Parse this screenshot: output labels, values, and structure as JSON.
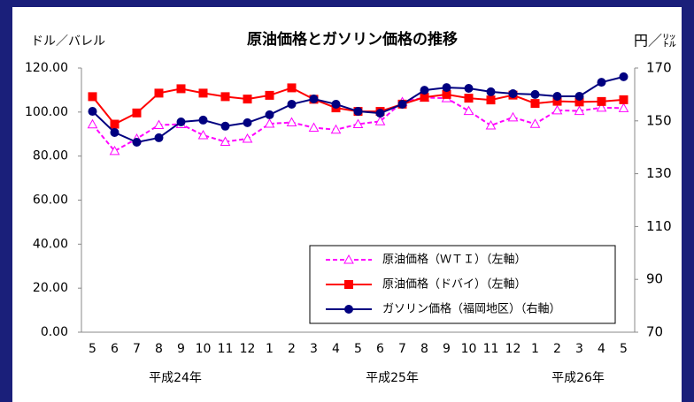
{
  "chart_data": {
    "type": "line",
    "title": "原油価格とガソリン価格の推移",
    "y_label": "ドル／バレル",
    "y2_label": "円／㍑",
    "categories": [
      "5",
      "6",
      "7",
      "8",
      "9",
      "10",
      "11",
      "12",
      "1",
      "2",
      "3",
      "4",
      "5",
      "6",
      "7",
      "8",
      "9",
      "10",
      "11",
      "12",
      "1",
      "2",
      "3",
      "4",
      "5"
    ],
    "year_labels": [
      "平成24年",
      "平成25年",
      "平成26年"
    ],
    "ylim": [
      0,
      120
    ],
    "yticks": [
      {
        "value": 0,
        "label": "0.00"
      },
      {
        "value": 20,
        "label": "20.00"
      },
      {
        "value": 40,
        "label": "40.00"
      },
      {
        "value": 60,
        "label": "60.00"
      },
      {
        "value": 80,
        "label": "80.00"
      },
      {
        "value": 100,
        "label": "100.00"
      },
      {
        "value": 120,
        "label": "120.00"
      }
    ],
    "y2lim": [
      70,
      170
    ],
    "y2ticks": [
      70,
      90,
      110,
      130,
      150,
      170
    ],
    "grid": false,
    "series": [
      {
        "name": "原油価格（ＷＴＩ）（左軸）",
        "color": "#ff00ff",
        "marker": "triangle",
        "dashed": true,
        "values": [
          94.4,
          82.3,
          87.9,
          94.1,
          94.5,
          89.5,
          86.5,
          87.9,
          94.7,
          95.3,
          92.9,
          92.0,
          94.5,
          95.8,
          104.6,
          106.6,
          106.3,
          100.5,
          93.9,
          97.6,
          94.6,
          100.8,
          100.5,
          102.0,
          101.8
        ]
      },
      {
        "name": "原油価格（ドバイ）（左軸）",
        "color": "#ff0000",
        "marker": "square",
        "dashed": false,
        "values": [
          107.0,
          94.5,
          99.6,
          108.6,
          110.6,
          108.6,
          107.0,
          105.9,
          107.6,
          111.0,
          105.8,
          101.9,
          100.3,
          100.3,
          103.6,
          106.7,
          108.0,
          106.3,
          105.5,
          107.7,
          103.9,
          104.9,
          104.6,
          104.8,
          105.6
        ]
      },
      {
        "name": "ガソリン価格（福岡地区）（右軸）",
        "color": "#000080",
        "marker": "circle",
        "dashed": false,
        "axis": "y2",
        "values": [
          153.6,
          145.6,
          141.9,
          143.6,
          149.6,
          150.3,
          148.0,
          149.3,
          152.3,
          156.3,
          158.3,
          156.3,
          153.6,
          152.9,
          156.3,
          161.6,
          162.6,
          162.3,
          161.0,
          160.3,
          160.0,
          159.3,
          159.3,
          164.6,
          166.7
        ]
      }
    ]
  }
}
